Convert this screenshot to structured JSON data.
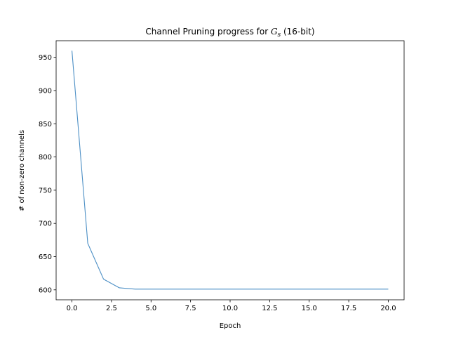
{
  "chart_data": {
    "type": "line",
    "title_prefix": "Channel Pruning progress for ",
    "title_var": "G",
    "title_sub": "s",
    "title_suffix": " (16-bit)",
    "xlabel": "Epoch",
    "ylabel": "# of non-zero channels",
    "xlim": [
      -1.0,
      21.0
    ],
    "ylim": [
      585,
      975
    ],
    "xticks": [
      0,
      2.5,
      5,
      7.5,
      10,
      12.5,
      15,
      17.5,
      20
    ],
    "xtick_labels": [
      "0.0",
      "2.5",
      "5.0",
      "7.5",
      "10.0",
      "12.5",
      "15.0",
      "17.5",
      "20.0"
    ],
    "yticks": [
      600,
      650,
      700,
      750,
      800,
      850,
      900,
      950
    ],
    "ytick_labels": [
      "600",
      "650",
      "700",
      "750",
      "800",
      "850",
      "900",
      "950"
    ],
    "grid": false,
    "line_color": "#4c8fc5",
    "series": [
      {
        "x": [
          0,
          1,
          2,
          3,
          4,
          5,
          6,
          7,
          8,
          9,
          10,
          11,
          12,
          13,
          14,
          15,
          16,
          17,
          18,
          19,
          20
        ],
        "values": [
          960,
          670,
          616,
          603,
          601,
          601,
          601,
          601,
          601,
          601,
          601,
          601,
          601,
          601,
          601,
          601,
          601,
          601,
          601,
          601,
          601
        ]
      }
    ]
  }
}
